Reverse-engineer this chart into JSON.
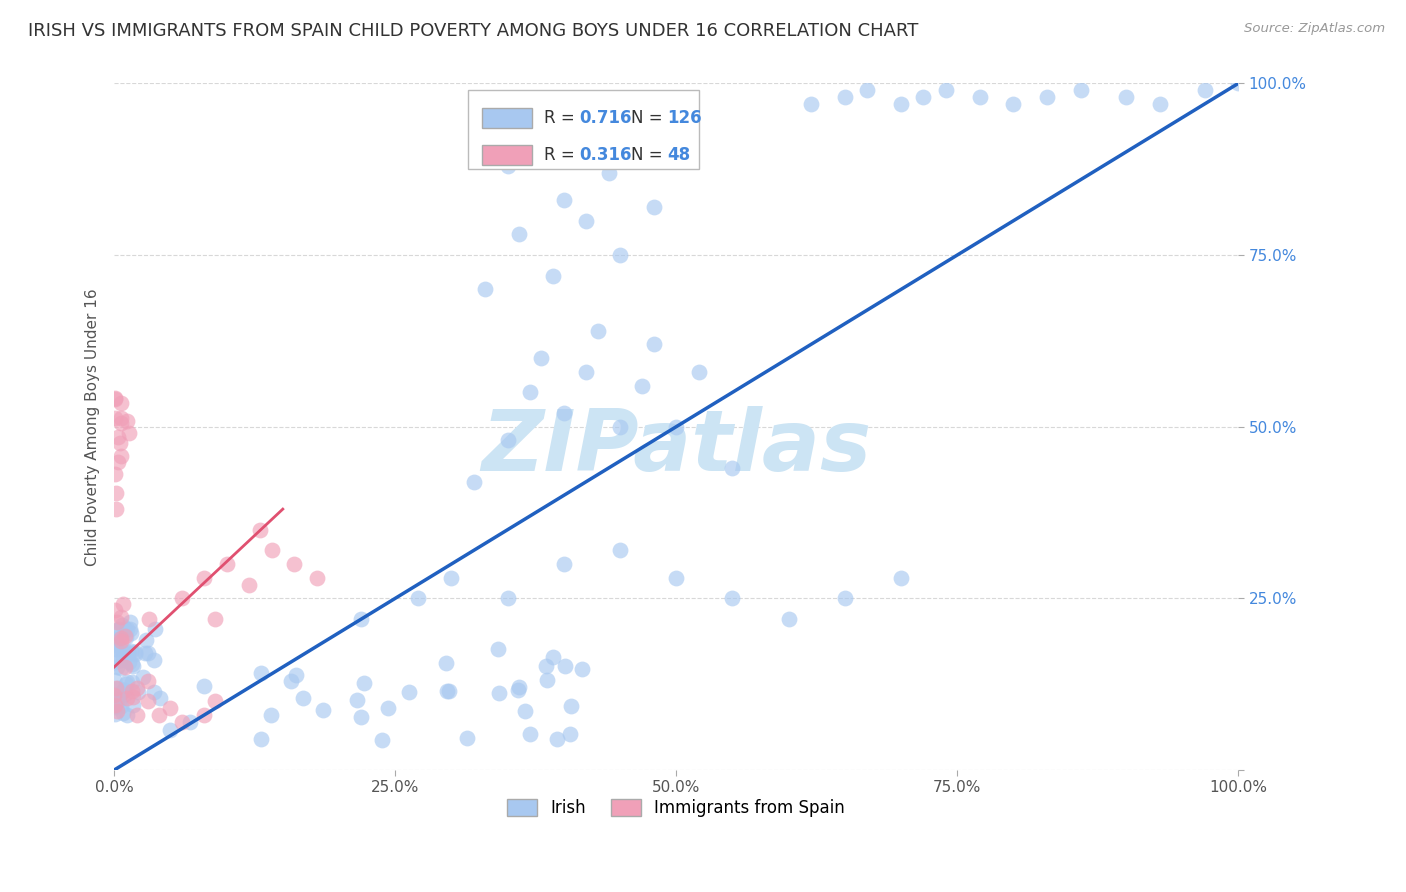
{
  "title": "IRISH VS IMMIGRANTS FROM SPAIN CHILD POVERTY AMONG BOYS UNDER 16 CORRELATION CHART",
  "source": "Source: ZipAtlas.com",
  "ylabel": "Child Poverty Among Boys Under 16",
  "xlim": [
    0,
    1
  ],
  "ylim": [
    0,
    1
  ],
  "xticks": [
    0.0,
    0.25,
    0.5,
    0.75,
    1.0
  ],
  "yticks": [
    0.0,
    0.25,
    0.5,
    0.75,
    1.0
  ],
  "xtick_labels": [
    "0.0%",
    "25.0%",
    "50.0%",
    "75.0%",
    "100.0%"
  ],
  "ytick_labels": [
    "",
    "25.0%",
    "50.0%",
    "75.0%",
    "100.0%"
  ],
  "irish_color": "#a8c8f0",
  "spain_color": "#f0a0b8",
  "irish_R": 0.716,
  "irish_N": 126,
  "spain_R": 0.316,
  "spain_N": 48,
  "irish_line_color": "#2060c0",
  "spain_line_color": "#e05070",
  "ref_line_color": "#c8c8c8",
  "watermark": "ZIPatlas",
  "watermark_color": "#cce4f4",
  "background_color": "#ffffff",
  "grid_color": "#d8d8d8",
  "title_fontsize": 13,
  "axis_label_fontsize": 11,
  "tick_fontsize": 11,
  "legend_value_color": "#4488dd"
}
